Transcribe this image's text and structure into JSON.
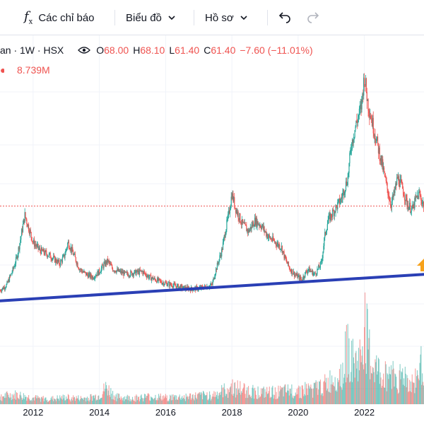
{
  "toolbar": {
    "indicators_label": "Các chỉ báo",
    "chart_label": "Biểu đồ",
    "profile_label": "Hồ sơ"
  },
  "legend": {
    "symbol_text": "an · 1W · HSX",
    "open_label": "O",
    "open_value": "68.00",
    "high_label": "H",
    "high_value": "68.10",
    "low_label": "L",
    "low_value": "61.40",
    "close_label": "C",
    "close_value": "61.40",
    "change_value": "−7.60 (−11.01%)",
    "volume_value": "8.739M"
  },
  "colors": {
    "up": "#26a69a",
    "down": "#ef5350",
    "trendline": "#2a3fb5",
    "price_line": "#ef5350",
    "grid": "#f0f3fa",
    "marker": "#f7a21b"
  },
  "chart_data": {
    "type": "candlestick",
    "interval": "1W",
    "exchange": "HSX",
    "x_ticks": [
      "2012",
      "2014",
      "2016",
      "2018",
      "2020",
      "2022"
    ],
    "x_range": [
      2011.0,
      2023.8
    ],
    "price_series": [
      [
        2011.0,
        30
      ],
      [
        2011.2,
        32
      ],
      [
        2011.4,
        38
      ],
      [
        2011.5,
        42
      ],
      [
        2011.6,
        48
      ],
      [
        2011.75,
        58
      ],
      [
        2011.85,
        54
      ],
      [
        2012.0,
        48
      ],
      [
        2012.2,
        45
      ],
      [
        2012.5,
        43
      ],
      [
        2012.8,
        40
      ],
      [
        2012.95,
        43
      ],
      [
        2013.05,
        48
      ],
      [
        2013.2,
        44
      ],
      [
        2013.4,
        38
      ],
      [
        2013.6,
        36
      ],
      [
        2013.8,
        35
      ],
      [
        2014.0,
        37
      ],
      [
        2014.1,
        39
      ],
      [
        2014.25,
        41
      ],
      [
        2014.4,
        38
      ],
      [
        2014.6,
        37
      ],
      [
        2014.8,
        36
      ],
      [
        2015.0,
        36.5
      ],
      [
        2015.3,
        37
      ],
      [
        2015.5,
        35
      ],
      [
        2015.7,
        34
      ],
      [
        2015.9,
        33
      ],
      [
        2016.2,
        32
      ],
      [
        2016.5,
        31
      ],
      [
        2016.8,
        30.5
      ],
      [
        2017.1,
        31
      ],
      [
        2017.4,
        32
      ],
      [
        2017.5,
        37
      ],
      [
        2017.7,
        45
      ],
      [
        2017.8,
        52
      ],
      [
        2017.9,
        58
      ],
      [
        2018.0,
        66
      ],
      [
        2018.1,
        61
      ],
      [
        2018.3,
        55
      ],
      [
        2018.5,
        52
      ],
      [
        2018.7,
        56
      ],
      [
        2018.9,
        54
      ],
      [
        2019.1,
        50
      ],
      [
        2019.3,
        48
      ],
      [
        2019.5,
        46
      ],
      [
        2019.6,
        42
      ],
      [
        2019.75,
        38
      ],
      [
        2019.9,
        36
      ],
      [
        2020.1,
        34
      ],
      [
        2020.3,
        38
      ],
      [
        2020.5,
        36
      ],
      [
        2020.7,
        40
      ],
      [
        2020.8,
        50
      ],
      [
        2020.9,
        56
      ],
      [
        2021.1,
        60
      ],
      [
        2021.3,
        64
      ],
      [
        2021.5,
        72
      ],
      [
        2021.6,
        84
      ],
      [
        2021.75,
        92
      ],
      [
        2021.9,
        98
      ],
      [
        2022.0,
        110
      ],
      [
        2022.1,
        100
      ],
      [
        2022.25,
        92
      ],
      [
        2022.4,
        84
      ],
      [
        2022.55,
        76
      ],
      [
        2022.65,
        70
      ],
      [
        2022.8,
        62
      ],
      [
        2022.9,
        66
      ],
      [
        2023.0,
        72
      ],
      [
        2023.15,
        68
      ],
      [
        2023.3,
        62
      ],
      [
        2023.45,
        60
      ],
      [
        2023.55,
        64
      ],
      [
        2023.65,
        66
      ],
      [
        2023.8,
        61.4
      ]
    ],
    "trendline": [
      [
        2010.85,
        26
      ],
      [
        2023.8,
        36
      ]
    ],
    "current_price": 61.4,
    "volume_series": [
      [
        2011.0,
        1.5
      ],
      [
        2011.5,
        1.8
      ],
      [
        2012.0,
        1.2
      ],
      [
        2012.5,
        1.0
      ],
      [
        2013.0,
        1.3
      ],
      [
        2013.5,
        1.1
      ],
      [
        2014.0,
        1.6
      ],
      [
        2014.2,
        3.2
      ],
      [
        2014.5,
        1.4
      ],
      [
        2015.0,
        1.2
      ],
      [
        2015.5,
        1.5
      ],
      [
        2016.0,
        1.3
      ],
      [
        2016.5,
        1.4
      ],
      [
        2017.0,
        1.6
      ],
      [
        2017.5,
        1.9
      ],
      [
        2017.9,
        3.0
      ],
      [
        2018.0,
        3.4
      ],
      [
        2018.5,
        2.6
      ],
      [
        2019.0,
        2.2
      ],
      [
        2019.5,
        2.4
      ],
      [
        2020.0,
        2.8
      ],
      [
        2020.5,
        3.0
      ],
      [
        2020.9,
        4.0
      ],
      [
        2021.1,
        5.4
      ],
      [
        2021.3,
        6.0
      ],
      [
        2021.5,
        11.0
      ],
      [
        2021.7,
        7.5
      ],
      [
        2021.9,
        9.0
      ],
      [
        2022.0,
        15.5
      ],
      [
        2022.2,
        8.0
      ],
      [
        2022.4,
        6.5
      ],
      [
        2022.6,
        5.2
      ],
      [
        2022.8,
        6.8
      ],
      [
        2023.0,
        4.8
      ],
      [
        2023.2,
        6.0
      ],
      [
        2023.4,
        3.6
      ],
      [
        2023.6,
        5.5
      ],
      [
        2023.8,
        8.7
      ]
    ]
  }
}
